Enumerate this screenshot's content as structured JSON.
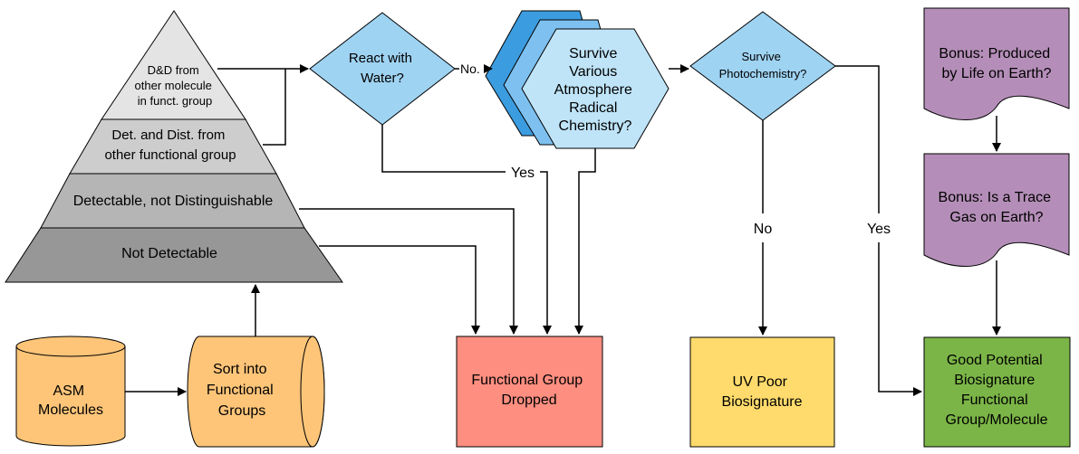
{
  "pyramid": {
    "top_lines": [
      "D&D from",
      "other molecule",
      "in funct. group"
    ],
    "level2_lines": [
      "Det. and Dist. from",
      "other functional group"
    ],
    "level3": "Detectable, not Distinguishable",
    "level4": "Not Detectable"
  },
  "asm_lines": [
    "ASM",
    "Molecules"
  ],
  "sort_lines": [
    "Sort into",
    "Functional",
    "Groups"
  ],
  "react_lines": [
    "React with",
    "Water?"
  ],
  "no_label": "No.",
  "yes_label": "Yes",
  "survive_atm_lines": [
    "Survive",
    "Various",
    "Atmosphere",
    "Radical",
    "Chemistry?"
  ],
  "photo_lines": [
    "Survive",
    "Photochemistry?"
  ],
  "no_label_2": "No",
  "yes_label_2": "Yes",
  "dropped_lines": [
    "Functional Group",
    "Dropped"
  ],
  "uv_poor_lines": [
    "UV Poor",
    "Biosignature"
  ],
  "bonus1_lines": [
    "Bonus: Produced",
    "by Life on Earth?"
  ],
  "bonus2_lines": [
    "Bonus: Is a Trace",
    "Gas on Earth?"
  ],
  "good_lines": [
    "Good Potential",
    "Biosignature",
    "Functional",
    "Group/Molecule"
  ],
  "colors": {
    "pyramid_top": "#e4e4e4",
    "pyramid_l2": "#cdcdcd",
    "pyramid_l3": "#b5b5b5",
    "pyramid_l4": "#979797",
    "decision_blue": "#9fd3f2",
    "hex_dark": "#3c9ce0",
    "hex_mid": "#7ec1f0",
    "hex_light": "#bfe4f8",
    "orange": "#fec579",
    "red": "#fd8e80",
    "yellow": "#fedb6c",
    "purple": "#b48eb8",
    "green": "#7bb547"
  }
}
